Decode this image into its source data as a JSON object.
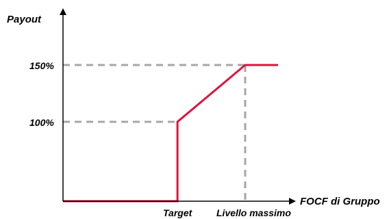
{
  "chart_data": {
    "type": "line",
    "title": "",
    "ylabel": "Payout",
    "xlabel": "FOCF di Gruppo",
    "y_ticks": [
      {
        "label": "150%",
        "value": 150
      },
      {
        "label": "100%",
        "value": 100
      }
    ],
    "x_ticks": [
      {
        "label": "Target",
        "value": 1
      },
      {
        "label": "Livello massimo",
        "value": 2
      }
    ],
    "xlim": [
      -1,
      2.5
    ],
    "ylim": [
      0,
      150
    ],
    "series": [
      {
        "points": [
          {
            "x": -1,
            "y": 0
          },
          {
            "x": 0.97,
            "y": 0
          },
          {
            "x": 0.97,
            "y": 100
          },
          {
            "x": 2,
            "y": 150
          },
          {
            "x": 2.5,
            "y": 150
          }
        ]
      }
    ],
    "reference_lines": [
      {
        "y": 150,
        "x_end": 2
      },
      {
        "y": 100,
        "x_end": 0.97
      },
      {
        "x": 2,
        "y_end": 150
      }
    ],
    "colors": {
      "series": "#e0123a",
      "reference": "#a6a6a6",
      "axis": "#000000"
    },
    "grid": false,
    "legend": "none"
  }
}
